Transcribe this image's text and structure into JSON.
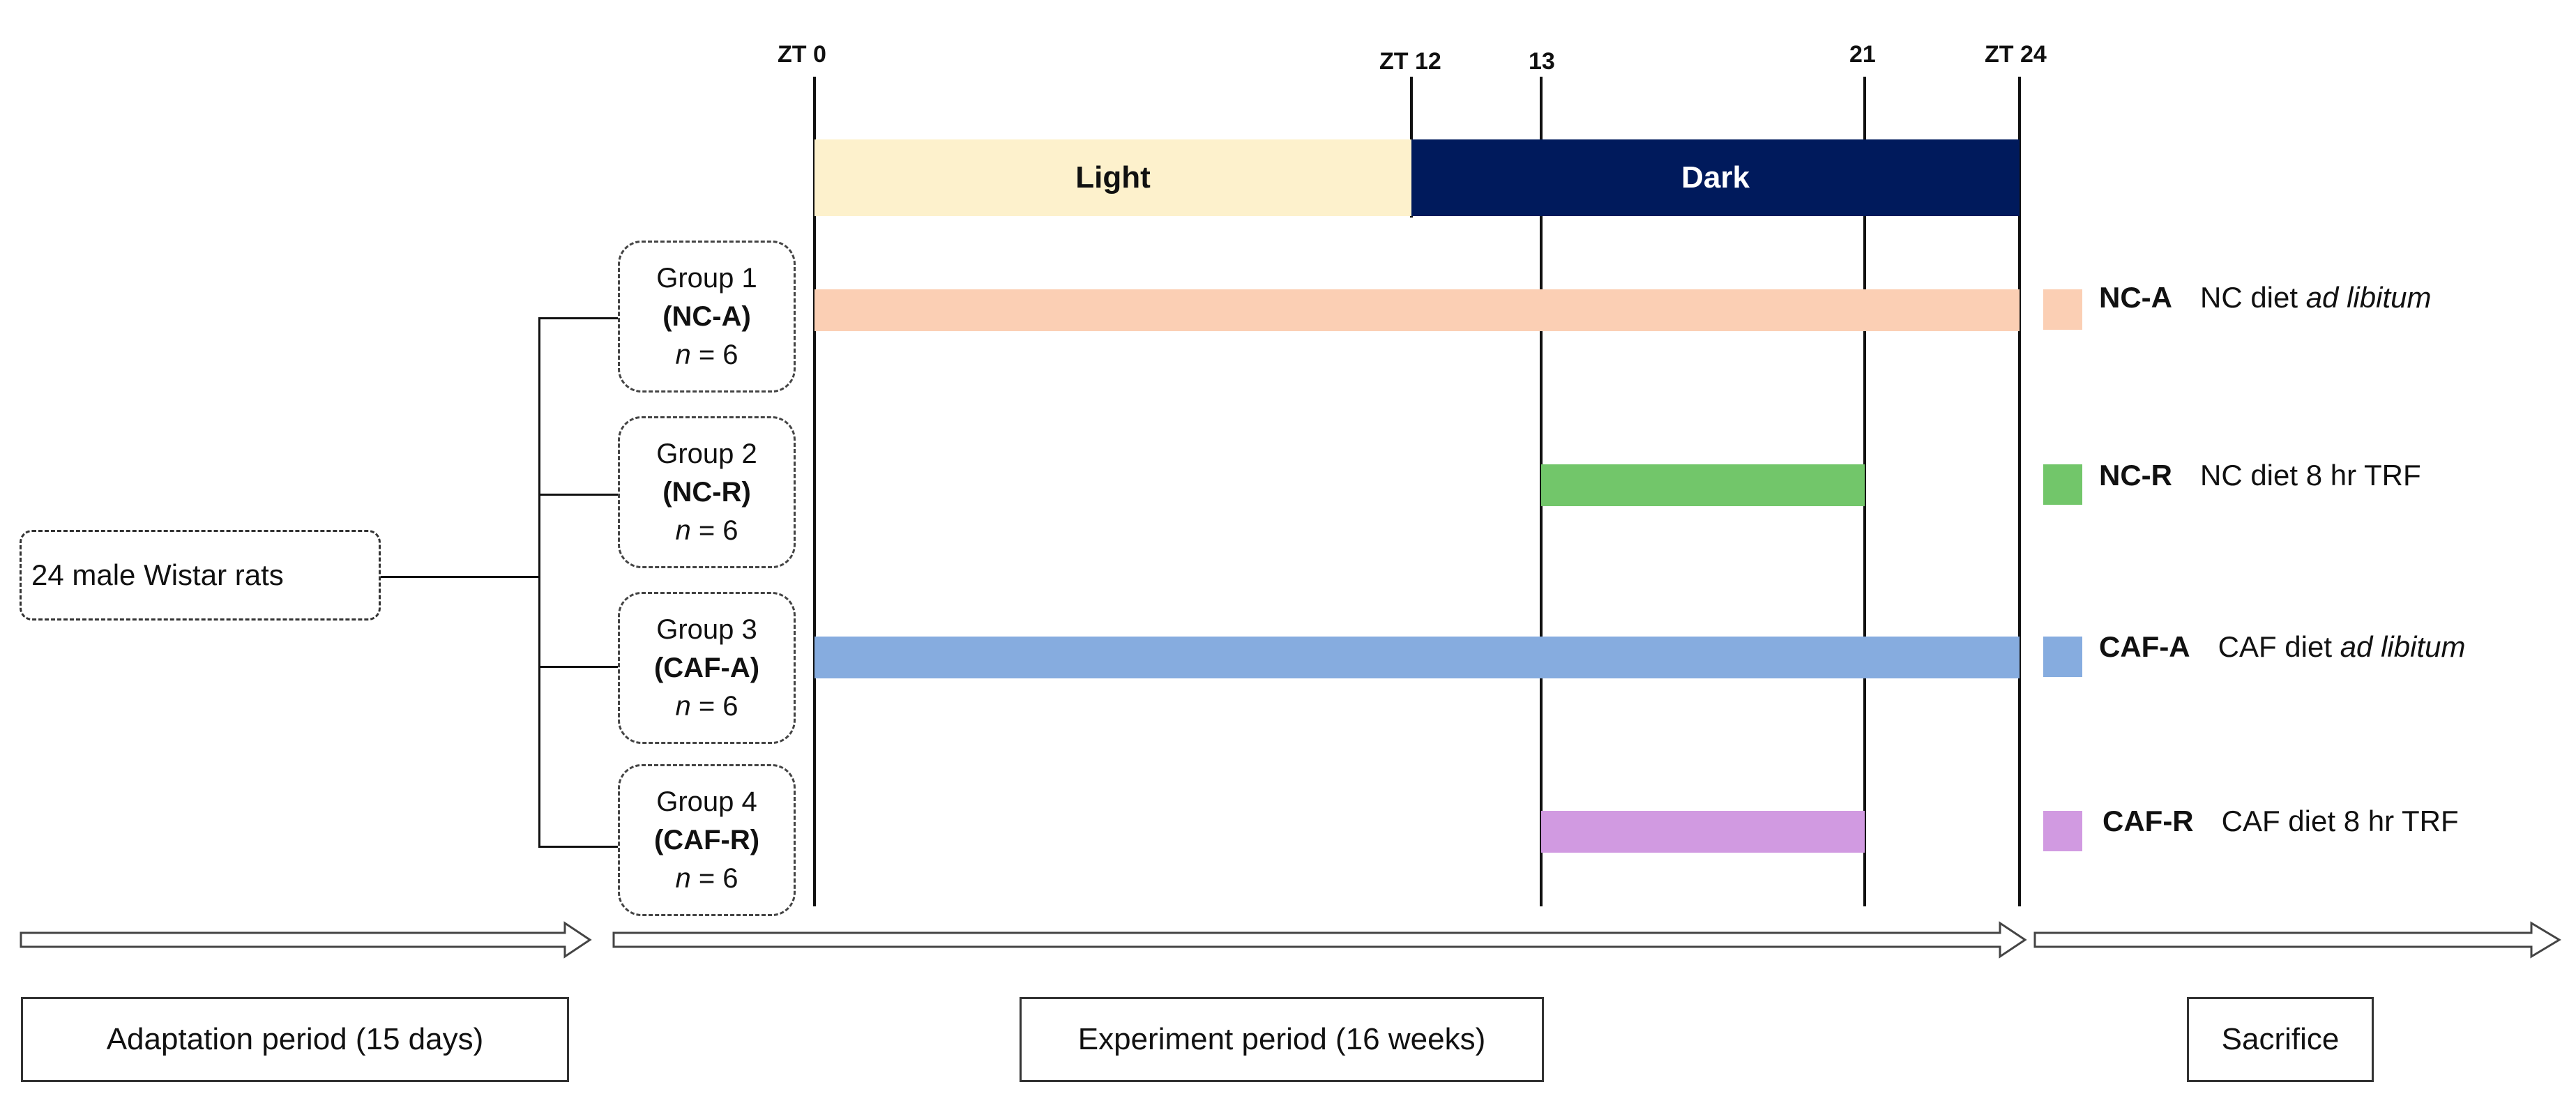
{
  "timeline": {
    "zt0": "ZT 0",
    "zt12": "ZT 12",
    "t13": "13",
    "t21": "21",
    "zt24": "ZT 24",
    "light": "Light",
    "dark": "Dark",
    "light_color": "#fdf1cc",
    "dark_color": "#001a5c"
  },
  "source": {
    "label": "24 male Wistar rats"
  },
  "groups": [
    {
      "title": "Group 1",
      "code": "(NC-A)",
      "n_symbol": "n",
      "n_value": "= 6",
      "color": "#fbcfb4"
    },
    {
      "title": "Group 2",
      "code": "(NC-R)",
      "n_symbol": "n",
      "n_value": "= 6",
      "color": "#72c66a"
    },
    {
      "title": "Group 3",
      "code": "(CAF-A)",
      "n_symbol": "n",
      "n_value": "= 6",
      "color": "#86acdf"
    },
    {
      "title": "Group 4",
      "code": "(CAF-R)",
      "n_symbol": "n",
      "n_value": "= 6",
      "color": "#d19ae1"
    }
  ],
  "legend": [
    {
      "code": "NC-A",
      "text": "NC diet ",
      "italic": "ad libitum"
    },
    {
      "code": "NC-R",
      "text": "NC diet  8 hr TRF",
      "italic": ""
    },
    {
      "code": "CAF-A",
      "text": "CAF diet ",
      "italic": "ad libitum"
    },
    {
      "code": "CAF-R",
      "text": "CAF  diet 8 hr TRF",
      "italic": ""
    }
  ],
  "phases": {
    "adaptation": "Adaptation period (15 days)",
    "experiment": "Experiment period (16 weeks)",
    "sacrifice": "Sacrifice"
  }
}
